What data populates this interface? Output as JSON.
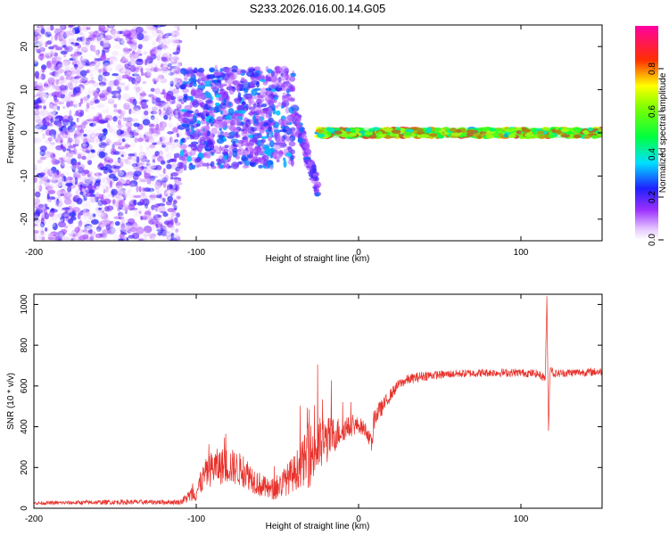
{
  "chart_data": [
    {
      "type": "heatmap",
      "title": "S233.2026.016.00.14.G05",
      "xlabel": "Height of straight line (km)",
      "ylabel": "Frequency (Hz)",
      "xlim": [
        -200,
        150
      ],
      "ylim": [
        -25,
        25
      ],
      "xticks": [
        -200,
        -100,
        0,
        100
      ],
      "yticks": [
        -20,
        -10,
        0,
        10,
        20
      ],
      "grid": false,
      "colorbar": {
        "label": "Normalized spectral amplitude",
        "range": [
          0,
          1
        ],
        "ticks": [
          0,
          0.2,
          0.4,
          0.6,
          0.8
        ],
        "tick_labels": [
          "0.0",
          "0.2",
          "0.4",
          "0.6",
          "0.8"
        ],
        "colormap": "rainbow (white → purple → blue → cyan → green → yellow → red → magenta)"
      },
      "regions": [
        {
          "x": [
            -200,
            -110
          ],
          "freq": [
            -25,
            25
          ],
          "amplitude": [
            0.0,
            0.25
          ],
          "description": "scattered low-level speckle"
        },
        {
          "x": [
            -110,
            -40
          ],
          "freq": [
            -8,
            15
          ],
          "amplitude": [
            0.1,
            0.35
          ],
          "description": "dense purple/blue blobs"
        },
        {
          "x": [
            -40,
            -25
          ],
          "freq": [
            -13,
            5
          ],
          "amplitude": [
            0.1,
            0.3
          ],
          "description": "features descending toward negative frequency"
        },
        {
          "x": [
            -25,
            150
          ],
          "freq": [
            -1,
            1
          ],
          "amplitude": [
            0.3,
            0.9
          ],
          "description": "narrow carrier line near 0 Hz"
        }
      ]
    },
    {
      "type": "line",
      "title": "",
      "xlabel": "Height of straight line (km)",
      "ylabel": "SNR (10 * v/v)",
      "xlim": [
        -200,
        150
      ],
      "ylim": [
        0,
        1050
      ],
      "xticks": [
        -200,
        -100,
        0,
        100
      ],
      "yticks": [
        0,
        200,
        400,
        600,
        800,
        1000
      ],
      "grid": false,
      "series": [
        {
          "color": "#e8302a",
          "x": [
            -200,
            -150,
            -110,
            -100,
            -95,
            -90,
            -80,
            -70,
            -60,
            -55,
            -50,
            -40,
            -35,
            -30,
            -25,
            -20,
            -15,
            -10,
            -5,
            0,
            5,
            8,
            10,
            15,
            20,
            25,
            30,
            40,
            50,
            60,
            80,
            100,
            110,
            115,
            116,
            117,
            118,
            120,
            130,
            150
          ],
          "y": [
            25,
            30,
            30,
            80,
            160,
            200,
            210,
            180,
            110,
            90,
            100,
            170,
            220,
            260,
            300,
            330,
            360,
            385,
            400,
            410,
            380,
            310,
            450,
            500,
            560,
            610,
            630,
            650,
            655,
            660,
            665,
            665,
            660,
            640,
            1040,
            380,
            700,
            660,
            665,
            670
          ],
          "noise": [
            8,
            12,
            12,
            50,
            70,
            90,
            90,
            80,
            60,
            50,
            60,
            90,
            110,
            160,
            150,
            120,
            90,
            60,
            50,
            40,
            40,
            40,
            50,
            40,
            30,
            25,
            25,
            25,
            20,
            20,
            20,
            20,
            20,
            20,
            0,
            0,
            20,
            20,
            20,
            20
          ]
        }
      ]
    }
  ]
}
